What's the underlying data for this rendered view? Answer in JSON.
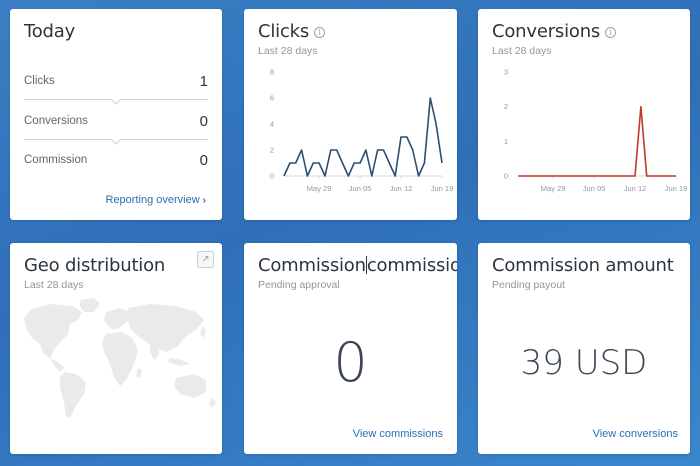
{
  "today": {
    "title": "Today",
    "rows": [
      {
        "label": "Clicks",
        "value": "1"
      },
      {
        "label": "Conversions",
        "value": "0"
      },
      {
        "label": "Commission",
        "value": "0"
      }
    ],
    "link": "Reporting overview"
  },
  "clicks": {
    "title": "Clicks",
    "subtitle": "Last 28 days"
  },
  "conversions": {
    "title": "Conversions",
    "subtitle": "Last 28 days"
  },
  "geo": {
    "title": "Geo distribution",
    "subtitle": "Last 28 days"
  },
  "commission_count": {
    "title_a": "Commission",
    "title_b": "commissions",
    "subtitle": "Pending approval",
    "value": "0",
    "link": "View commissions"
  },
  "commission_amount": {
    "title": "Commission amount",
    "subtitle": "Pending payout",
    "value": "39 USD",
    "link": "View conversions"
  },
  "colors": {
    "clicks_line": "#2c4e73",
    "conversions_line": "#c0392b",
    "link": "#2a6fb0"
  },
  "chart_data": [
    {
      "type": "line",
      "title": "Clicks",
      "x_ticks": [
        "May 29",
        "Jun 05",
        "Jun 12",
        "Jun 19"
      ],
      "y_ticks": [
        0,
        2,
        4,
        6,
        8
      ],
      "ylim": [
        0,
        8
      ],
      "x_count": 28,
      "tick_index": [
        6,
        13,
        20,
        27
      ],
      "values": [
        0,
        1,
        1,
        2,
        0,
        1,
        1,
        0,
        2,
        2,
        1,
        0,
        1,
        1,
        2,
        0,
        2,
        2,
        1,
        0,
        3,
        3,
        2,
        0,
        1,
        6,
        4,
        1
      ],
      "grid": false
    },
    {
      "type": "line",
      "title": "Conversions",
      "x_ticks": [
        "May 29",
        "Jun 05",
        "Jun 12",
        "Jun 19"
      ],
      "y_ticks": [
        0,
        1,
        2,
        3
      ],
      "ylim": [
        0,
        3
      ],
      "x_count": 28,
      "tick_index": [
        6,
        13,
        20,
        27
      ],
      "values": [
        0,
        0,
        0,
        0,
        0,
        0,
        0,
        0,
        0,
        0,
        0,
        0,
        0,
        0,
        0,
        0,
        0,
        0,
        0,
        0,
        0,
        2,
        0,
        0,
        0,
        0,
        0,
        0
      ],
      "grid": false
    }
  ]
}
